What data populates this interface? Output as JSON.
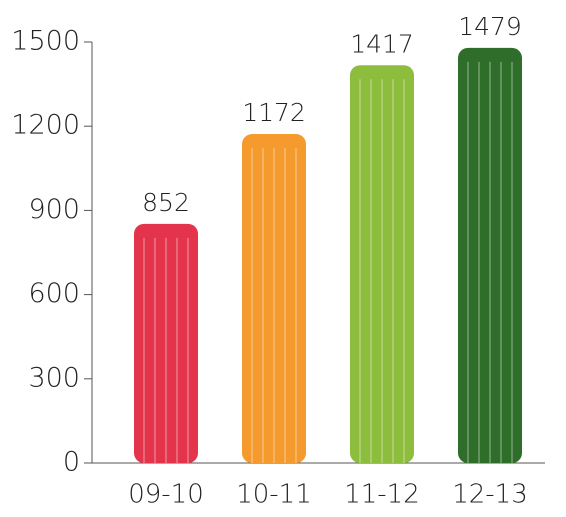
{
  "chart_data": {
    "type": "bar",
    "categories": [
      "09-10",
      "10-11",
      "11-12",
      "12-13"
    ],
    "values": [
      852,
      1172,
      1417,
      1479
    ],
    "colors": [
      "#e3344c",
      "#f59a2c",
      "#8dbd3d",
      "#2f6e2a"
    ],
    "ylim": [
      0,
      1500
    ],
    "yticks": [
      0,
      300,
      600,
      900,
      1200,
      1500
    ]
  }
}
